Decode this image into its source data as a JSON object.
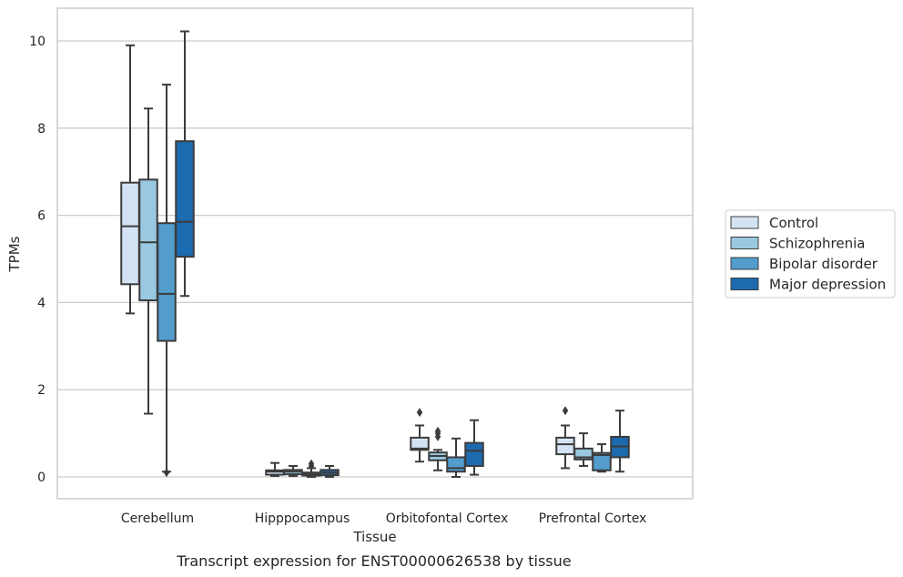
{
  "chart_data": {
    "type": "box",
    "xlabel": "Tissue",
    "ylabel": "TPMs",
    "caption": "Transcript expression for ENST00000626538 by tissue",
    "categories": [
      "Cerebellum",
      "Hipppocampus",
      "Orbitofontal Cortex",
      "Prefrontal Cortex"
    ],
    "yticks": [
      0,
      2,
      4,
      6,
      8,
      10
    ],
    "ylim": [
      -0.5,
      10.7
    ],
    "grid": "horizontal",
    "legend_position": "right",
    "series": [
      {
        "name": "Control",
        "color": "#d3e3f3",
        "boxes": [
          {
            "whisker_low": 3.75,
            "q1": 4.42,
            "median": 5.75,
            "q3": 6.75,
            "whisker_high": 9.9,
            "outliers": []
          },
          {
            "whisker_low": 0.02,
            "q1": 0.05,
            "median": 0.12,
            "q3": 0.15,
            "whisker_high": 0.32,
            "outliers": []
          },
          {
            "whisker_low": 0.35,
            "q1": 0.62,
            "median": 0.65,
            "q3": 0.9,
            "whisker_high": 1.18,
            "outliers": [
              1.48
            ]
          },
          {
            "whisker_low": 0.2,
            "q1": 0.52,
            "median": 0.75,
            "q3": 0.9,
            "whisker_high": 1.18,
            "outliers": [
              1.52
            ]
          }
        ]
      },
      {
        "name": "Schizophrenia",
        "color": "#9ac8e0",
        "boxes": [
          {
            "whisker_low": 1.45,
            "q1": 4.05,
            "median": 5.38,
            "q3": 6.82,
            "whisker_high": 8.45,
            "outliers": []
          },
          {
            "whisker_low": 0.02,
            "q1": 0.06,
            "median": 0.12,
            "q3": 0.16,
            "whisker_high": 0.25,
            "outliers": []
          },
          {
            "whisker_low": 0.15,
            "q1": 0.38,
            "median": 0.48,
            "q3": 0.56,
            "whisker_high": 0.62,
            "outliers": [
              0.92,
              1.0,
              1.05
            ]
          },
          {
            "whisker_low": 0.25,
            "q1": 0.4,
            "median": 0.45,
            "q3": 0.65,
            "whisker_high": 1.0,
            "outliers": []
          }
        ]
      },
      {
        "name": "Bipolar disorder",
        "color": "#529dcc",
        "boxes": [
          {
            "whisker_low": 0.12,
            "q1": 3.12,
            "median": 4.2,
            "q3": 5.82,
            "whisker_high": 9.0,
            "outliers": [
              0.1
            ]
          },
          {
            "whisker_low": 0.0,
            "q1": 0.03,
            "median": 0.06,
            "q3": 0.1,
            "whisker_high": 0.2,
            "outliers": [
              0.25,
              0.3
            ]
          },
          {
            "whisker_low": 0.0,
            "q1": 0.12,
            "median": 0.2,
            "q3": 0.45,
            "whisker_high": 0.88,
            "outliers": []
          },
          {
            "whisker_low": 0.12,
            "q1": 0.15,
            "median": 0.5,
            "q3": 0.55,
            "whisker_high": 0.75,
            "outliers": []
          }
        ]
      },
      {
        "name": "Major depression",
        "color": "#1c6aaf",
        "boxes": [
          {
            "whisker_low": 4.15,
            "q1": 5.05,
            "median": 5.85,
            "q3": 7.7,
            "whisker_high": 10.22,
            "outliers": []
          },
          {
            "whisker_low": 0.0,
            "q1": 0.04,
            "median": 0.1,
            "q3": 0.16,
            "whisker_high": 0.25,
            "outliers": []
          },
          {
            "whisker_low": 0.05,
            "q1": 0.25,
            "median": 0.6,
            "q3": 0.78,
            "whisker_high": 1.3,
            "outliers": []
          },
          {
            "whisker_low": 0.12,
            "q1": 0.45,
            "median": 0.7,
            "q3": 0.92,
            "whisker_high": 1.52,
            "outliers": []
          }
        ]
      }
    ]
  }
}
